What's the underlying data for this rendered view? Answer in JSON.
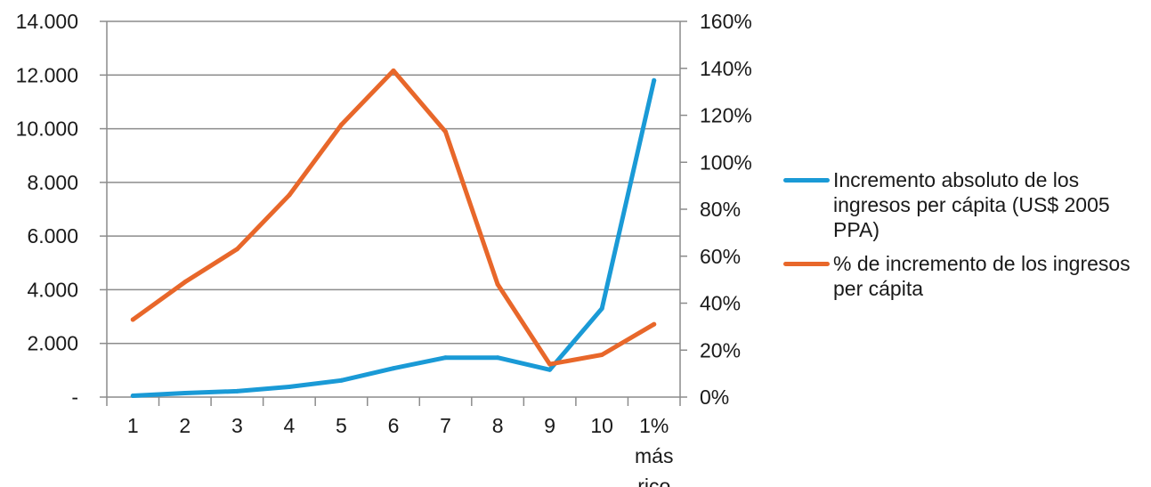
{
  "chart_data": {
    "type": "line",
    "title": "",
    "categories": [
      [
        "1"
      ],
      [
        "2"
      ],
      [
        "3"
      ],
      [
        "4"
      ],
      [
        "5"
      ],
      [
        "6"
      ],
      [
        "7"
      ],
      [
        "8"
      ],
      [
        "9"
      ],
      [
        "10"
      ],
      [
        "1%",
        "más",
        "rico"
      ]
    ],
    "y_left": {
      "min": 0,
      "max": 14000,
      "ticks": [
        {
          "value": 0,
          "label": "-"
        },
        {
          "value": 2000,
          "label": "2.000"
        },
        {
          "value": 4000,
          "label": "4.000"
        },
        {
          "value": 6000,
          "label": "6.000"
        },
        {
          "value": 8000,
          "label": "8.000"
        },
        {
          "value": 10000,
          "label": "10.000"
        },
        {
          "value": 12000,
          "label": "12.000"
        },
        {
          "value": 14000,
          "label": "14.000"
        }
      ]
    },
    "y_right": {
      "min": 0,
      "max": 160,
      "ticks": [
        {
          "value": 0,
          "label": "0%"
        },
        {
          "value": 20,
          "label": "20%"
        },
        {
          "value": 40,
          "label": "40%"
        },
        {
          "value": 60,
          "label": "60%"
        },
        {
          "value": 80,
          "label": "80%"
        },
        {
          "value": 100,
          "label": "100%"
        },
        {
          "value": 120,
          "label": "120%"
        },
        {
          "value": 140,
          "label": "140%"
        },
        {
          "value": 160,
          "label": "160%"
        }
      ]
    },
    "grid": true,
    "legend_position": "right",
    "series": [
      {
        "name": "Incremento absoluto de los ingresos per cápita (US$ 2005 PPA)",
        "axis": "left",
        "color": "#1a9ad6",
        "values": [
          50,
          150,
          220,
          380,
          620,
          1070,
          1470,
          1470,
          1020,
          3300,
          11800
        ]
      },
      {
        "name": "% de incremento de los ingresos per cápita",
        "axis": "right",
        "color": "#e8672a",
        "values": [
          33,
          49,
          63,
          86,
          116,
          139,
          113,
          48,
          14,
          18,
          31
        ]
      }
    ]
  }
}
